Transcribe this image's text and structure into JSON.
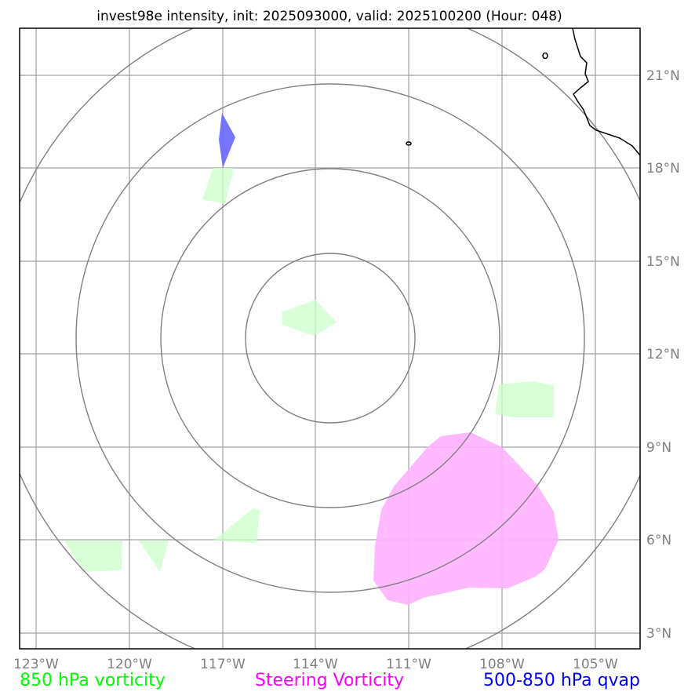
{
  "title": "invest98e intensity, init: 2025093000, valid: 2025100200 (Hour: 048)",
  "axes": {
    "lon_ticks": [
      "123°W",
      "120°W",
      "117°W",
      "114°W",
      "111°W",
      "108°W",
      "105°W"
    ],
    "lat_ticks": [
      "21°N",
      "18°N",
      "15°N",
      "12°N",
      "9°N",
      "6°N",
      "3°N"
    ]
  },
  "legend": [
    {
      "label": "850 hPa vorticity",
      "color": "#00ff00"
    },
    {
      "label": "Steering Vorticity",
      "color": "#ff00ff"
    },
    {
      "label": "500-850 hPa qvap",
      "color": "#0000ff"
    }
  ],
  "colors": {
    "vorticity_850": "#ccffcc",
    "steering_vorticity": "#ffb3ff",
    "qvap": "#6666ff",
    "grid": "#a0a0a0",
    "range_rings": "#808080",
    "coastline": "#000000"
  }
}
